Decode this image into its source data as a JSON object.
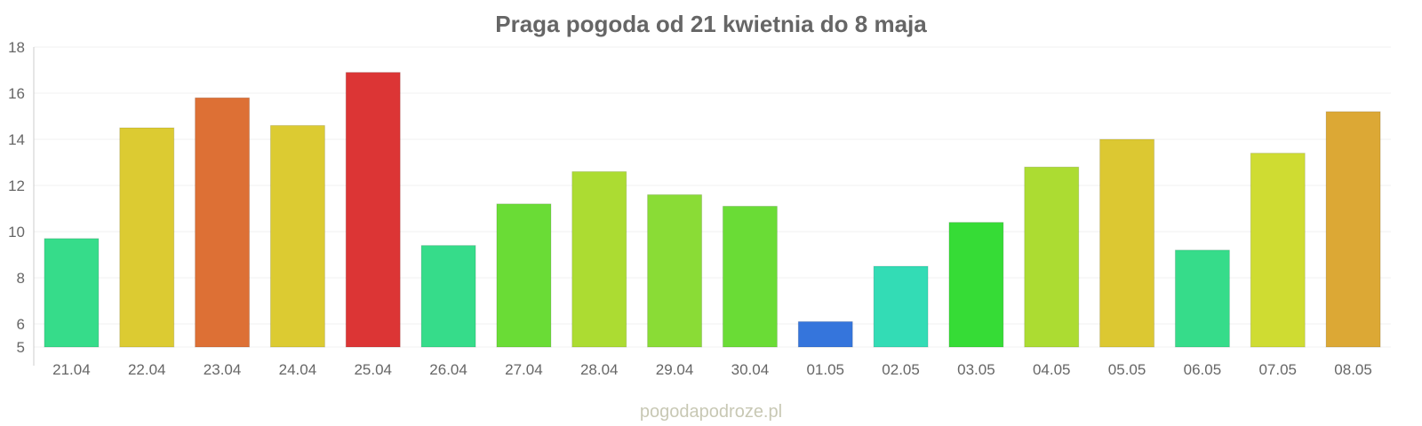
{
  "chart_data": {
    "type": "bar",
    "title": "Praga pogoda od 21 kwietnia do 8 maja",
    "xlabel": "",
    "ylabel": "",
    "ylim": [
      5,
      18
    ],
    "yticks": [
      5,
      6,
      8,
      10,
      12,
      14,
      16,
      18
    ],
    "grid": true,
    "categories": [
      "21.04",
      "22.04",
      "23.04",
      "24.04",
      "25.04",
      "26.04",
      "27.04",
      "28.04",
      "29.04",
      "30.04",
      "01.05",
      "02.05",
      "03.05",
      "04.05",
      "05.05",
      "06.05",
      "07.05",
      "08.05"
    ],
    "values": [
      9.7,
      14.5,
      15.8,
      14.6,
      16.9,
      9.4,
      11.2,
      12.6,
      11.6,
      11.1,
      6.1,
      8.5,
      10.4,
      12.8,
      14.0,
      9.2,
      13.4,
      15.2
    ],
    "colors": [
      "#36dc8a",
      "#dccb32",
      "#dd7035",
      "#dccb32",
      "#dc3535",
      "#36dc8a",
      "#6adc36",
      "#acdc32",
      "#8adc36",
      "#6adc36",
      "#3575dc",
      "#33dcb5",
      "#36dc36",
      "#acdc32",
      "#dcc832",
      "#36dc8a",
      "#cfdc32",
      "#dca835"
    ]
  },
  "watermark": "pogodapodroze.pl"
}
